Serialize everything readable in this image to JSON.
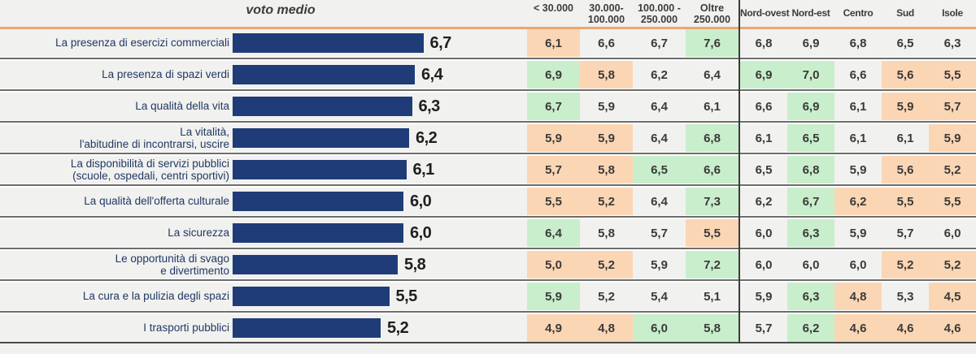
{
  "header": {
    "voto_medio_label": "voto medio",
    "size_columns": [
      "< 30.000",
      "30.000-\n100.000",
      "100.000 -\n250.000",
      "Oltre\n250.000"
    ],
    "region_columns": [
      "Nord-ovest",
      "Nord-est",
      "Centro",
      "Sud",
      "Isole"
    ]
  },
  "colors": {
    "bar": "#1f3c78",
    "label_text": "#1f3864",
    "highlight_positive": "#c9eecb",
    "highlight_negative": "#fbd6b4",
    "row_background": "#f1f1ef",
    "header_rule": "#eca76f",
    "separator": "#6d6d6d"
  },
  "chart_data": {
    "type": "bar",
    "title": "voto medio",
    "orientation": "horizontal",
    "xlim": [
      0,
      8
    ],
    "categories": [
      "La presenza di esercizi commerciali",
      "La presenza di spazi verdi",
      "La qualità della vita",
      "La vitalità, l'abitudine di incontrarsi, uscire",
      "La disponibilità di servizi pubblici (scuole, ospedali, centri sportivi)",
      "La qualità dell'offerta culturale",
      "La sicurezza",
      "Le opportunità di svago e divertimento",
      "La cura e la pulizia degli spazi",
      "I trasporti pubblici"
    ],
    "values": [
      6.7,
      6.4,
      6.3,
      6.2,
      6.1,
      6.0,
      6.0,
      5.8,
      5.5,
      5.2
    ],
    "series": [
      {
        "name": "< 30.000",
        "values": [
          6.1,
          6.9,
          6.7,
          5.9,
          5.7,
          5.5,
          6.4,
          5.0,
          5.9,
          4.9
        ]
      },
      {
        "name": "30.000-100.000",
        "values": [
          6.6,
          5.8,
          5.9,
          5.9,
          5.8,
          5.2,
          5.8,
          5.2,
          5.2,
          4.8
        ]
      },
      {
        "name": "100.000-250.000",
        "values": [
          6.7,
          6.2,
          6.4,
          6.4,
          6.5,
          6.4,
          5.7,
          5.9,
          5.4,
          6.0
        ]
      },
      {
        "name": "Oltre 250.000",
        "values": [
          7.6,
          6.4,
          6.1,
          6.8,
          6.6,
          7.3,
          5.5,
          7.2,
          5.1,
          5.8
        ]
      },
      {
        "name": "Nord-ovest",
        "values": [
          6.8,
          6.9,
          6.6,
          6.1,
          6.5,
          6.2,
          6.0,
          6.0,
          5.9,
          5.7
        ]
      },
      {
        "name": "Nord-est",
        "values": [
          6.9,
          7.0,
          6.9,
          6.5,
          6.8,
          6.7,
          6.3,
          6.0,
          6.3,
          6.2
        ]
      },
      {
        "name": "Centro",
        "values": [
          6.8,
          6.6,
          6.1,
          6.1,
          5.9,
          6.2,
          5.9,
          6.0,
          4.8,
          4.6
        ]
      },
      {
        "name": "Sud",
        "values": [
          6.5,
          5.6,
          5.9,
          6.1,
          5.6,
          5.5,
          5.7,
          5.2,
          5.3,
          4.6
        ]
      },
      {
        "name": "Isole",
        "values": [
          6.3,
          5.5,
          5.7,
          5.9,
          5.2,
          5.5,
          6.0,
          5.2,
          4.5,
          4.6
        ]
      }
    ]
  },
  "rows": [
    {
      "label_lines": [
        "La presenza di esercizi commerciali"
      ],
      "value_label": "6,7",
      "cells": [
        {
          "v": "6,1",
          "hl": "low"
        },
        {
          "v": "6,6",
          "hl": "none"
        },
        {
          "v": "6,7",
          "hl": "none"
        },
        {
          "v": "7,6",
          "hl": "high"
        },
        {
          "v": "6,8",
          "hl": "none"
        },
        {
          "v": "6,9",
          "hl": "none"
        },
        {
          "v": "6,8",
          "hl": "none"
        },
        {
          "v": "6,5",
          "hl": "none"
        },
        {
          "v": "6,3",
          "hl": "none"
        }
      ]
    },
    {
      "label_lines": [
        "La presenza di spazi verdi"
      ],
      "value_label": "6,4",
      "cells": [
        {
          "v": "6,9",
          "hl": "high"
        },
        {
          "v": "5,8",
          "hl": "low"
        },
        {
          "v": "6,2",
          "hl": "none"
        },
        {
          "v": "6,4",
          "hl": "none"
        },
        {
          "v": "6,9",
          "hl": "high"
        },
        {
          "v": "7,0",
          "hl": "high"
        },
        {
          "v": "6,6",
          "hl": "none"
        },
        {
          "v": "5,6",
          "hl": "low"
        },
        {
          "v": "5,5",
          "hl": "low"
        }
      ]
    },
    {
      "label_lines": [
        "La qualità della vita"
      ],
      "value_label": "6,3",
      "cells": [
        {
          "v": "6,7",
          "hl": "high"
        },
        {
          "v": "5,9",
          "hl": "none"
        },
        {
          "v": "6,4",
          "hl": "none"
        },
        {
          "v": "6,1",
          "hl": "none"
        },
        {
          "v": "6,6",
          "hl": "none"
        },
        {
          "v": "6,9",
          "hl": "high"
        },
        {
          "v": "6,1",
          "hl": "none"
        },
        {
          "v": "5,9",
          "hl": "low"
        },
        {
          "v": "5,7",
          "hl": "low"
        }
      ]
    },
    {
      "label_lines": [
        "La vitalità,",
        "l'abitudine di incontrarsi, uscire"
      ],
      "value_label": "6,2",
      "cells": [
        {
          "v": "5,9",
          "hl": "low"
        },
        {
          "v": "5,9",
          "hl": "low"
        },
        {
          "v": "6,4",
          "hl": "none"
        },
        {
          "v": "6,8",
          "hl": "high"
        },
        {
          "v": "6,1",
          "hl": "none"
        },
        {
          "v": "6,5",
          "hl": "high"
        },
        {
          "v": "6,1",
          "hl": "none"
        },
        {
          "v": "6,1",
          "hl": "none"
        },
        {
          "v": "5,9",
          "hl": "low"
        }
      ]
    },
    {
      "label_lines": [
        "La disponibilità di servizi pubblici",
        "(scuole, ospedali, centri sportivi)"
      ],
      "value_label": "6,1",
      "cells": [
        {
          "v": "5,7",
          "hl": "low"
        },
        {
          "v": "5,8",
          "hl": "low"
        },
        {
          "v": "6,5",
          "hl": "high"
        },
        {
          "v": "6,6",
          "hl": "high"
        },
        {
          "v": "6,5",
          "hl": "none"
        },
        {
          "v": "6,8",
          "hl": "high"
        },
        {
          "v": "5,9",
          "hl": "none"
        },
        {
          "v": "5,6",
          "hl": "low"
        },
        {
          "v": "5,2",
          "hl": "low"
        }
      ]
    },
    {
      "label_lines": [
        "La qualità dell'offerta culturale"
      ],
      "value_label": "6,0",
      "cells": [
        {
          "v": "5,5",
          "hl": "low"
        },
        {
          "v": "5,2",
          "hl": "low"
        },
        {
          "v": "6,4",
          "hl": "none"
        },
        {
          "v": "7,3",
          "hl": "high"
        },
        {
          "v": "6,2",
          "hl": "none"
        },
        {
          "v": "6,7",
          "hl": "high"
        },
        {
          "v": "6,2",
          "hl": "low"
        },
        {
          "v": "5,5",
          "hl": "low"
        },
        {
          "v": "5,5",
          "hl": "low"
        }
      ]
    },
    {
      "label_lines": [
        "La sicurezza"
      ],
      "value_label": "6,0",
      "cells": [
        {
          "v": "6,4",
          "hl": "high"
        },
        {
          "v": "5,8",
          "hl": "none"
        },
        {
          "v": "5,7",
          "hl": "none"
        },
        {
          "v": "5,5",
          "hl": "low"
        },
        {
          "v": "6,0",
          "hl": "none"
        },
        {
          "v": "6,3",
          "hl": "high"
        },
        {
          "v": "5,9",
          "hl": "none"
        },
        {
          "v": "5,7",
          "hl": "none"
        },
        {
          "v": "6,0",
          "hl": "none"
        }
      ]
    },
    {
      "label_lines": [
        "Le opportunità di svago",
        "e divertimento"
      ],
      "value_label": "5,8",
      "cells": [
        {
          "v": "5,0",
          "hl": "low"
        },
        {
          "v": "5,2",
          "hl": "low"
        },
        {
          "v": "5,9",
          "hl": "none"
        },
        {
          "v": "7,2",
          "hl": "high"
        },
        {
          "v": "6,0",
          "hl": "none"
        },
        {
          "v": "6,0",
          "hl": "none"
        },
        {
          "v": "6,0",
          "hl": "none"
        },
        {
          "v": "5,2",
          "hl": "low"
        },
        {
          "v": "5,2",
          "hl": "low"
        }
      ]
    },
    {
      "label_lines": [
        "La cura e la pulizia degli spazi"
      ],
      "value_label": "5,5",
      "cells": [
        {
          "v": "5,9",
          "hl": "high"
        },
        {
          "v": "5,2",
          "hl": "none"
        },
        {
          "v": "5,4",
          "hl": "none"
        },
        {
          "v": "5,1",
          "hl": "none"
        },
        {
          "v": "5,9",
          "hl": "none"
        },
        {
          "v": "6,3",
          "hl": "high"
        },
        {
          "v": "4,8",
          "hl": "low"
        },
        {
          "v": "5,3",
          "hl": "none"
        },
        {
          "v": "4,5",
          "hl": "low"
        }
      ]
    },
    {
      "label_lines": [
        "I trasporti pubblici"
      ],
      "value_label": "5,2",
      "cells": [
        {
          "v": "4,9",
          "hl": "low"
        },
        {
          "v": "4,8",
          "hl": "low"
        },
        {
          "v": "6,0",
          "hl": "high"
        },
        {
          "v": "5,8",
          "hl": "high"
        },
        {
          "v": "5,7",
          "hl": "none"
        },
        {
          "v": "6,2",
          "hl": "high"
        },
        {
          "v": "4,6",
          "hl": "low"
        },
        {
          "v": "4,6",
          "hl": "low"
        },
        {
          "v": "4,6",
          "hl": "low"
        }
      ]
    }
  ]
}
